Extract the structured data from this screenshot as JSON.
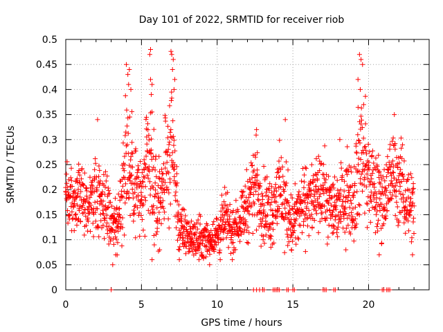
{
  "chart_data": {
    "type": "scatter",
    "title": "Day 101 of 2022, SRMTID for receiver riob",
    "xlabel": "GPS time / hours",
    "ylabel": "SRMTID / TECUs",
    "xlim": [
      0,
      24
    ],
    "ylim": [
      0,
      0.5
    ],
    "xticks": [
      0,
      5,
      10,
      15,
      20
    ],
    "xtick_labels": [
      "0",
      "5",
      "10",
      "15",
      "20"
    ],
    "yticks": [
      0,
      0.05,
      0.1,
      0.15,
      0.2,
      0.25,
      0.3,
      0.35,
      0.4,
      0.45,
      0.5
    ],
    "ytick_labels": [
      "0",
      "0.05",
      "0.1",
      "0.15",
      "0.2",
      "0.25",
      "0.3",
      "0.35",
      "0.4",
      "0.45",
      "0.5"
    ],
    "grid": true,
    "marker": "+",
    "marker_color": "#ff0000",
    "envelope": [
      [
        0.0,
        0.19,
        0.04
      ],
      [
        0.5,
        0.18,
        0.04
      ],
      [
        1.0,
        0.19,
        0.04
      ],
      [
        1.5,
        0.17,
        0.04
      ],
      [
        2.0,
        0.2,
        0.06
      ],
      [
        2.5,
        0.18,
        0.05
      ],
      [
        3.0,
        0.14,
        0.04
      ],
      [
        3.5,
        0.13,
        0.04
      ],
      [
        4.0,
        0.28,
        0.1
      ],
      [
        4.5,
        0.22,
        0.08
      ],
      [
        5.0,
        0.18,
        0.05
      ],
      [
        5.5,
        0.25,
        0.1
      ],
      [
        6.0,
        0.16,
        0.06
      ],
      [
        6.5,
        0.22,
        0.06
      ],
      [
        7.0,
        0.3,
        0.1
      ],
      [
        7.5,
        0.12,
        0.04
      ],
      [
        8.0,
        0.11,
        0.03
      ],
      [
        8.5,
        0.1,
        0.03
      ],
      [
        9.0,
        0.1,
        0.03
      ],
      [
        9.5,
        0.1,
        0.02
      ],
      [
        10.0,
        0.11,
        0.03
      ],
      [
        10.5,
        0.14,
        0.04
      ],
      [
        11.0,
        0.12,
        0.03
      ],
      [
        11.5,
        0.14,
        0.03
      ],
      [
        12.0,
        0.17,
        0.05
      ],
      [
        12.5,
        0.22,
        0.06
      ],
      [
        13.0,
        0.17,
        0.05
      ],
      [
        13.5,
        0.15,
        0.05
      ],
      [
        14.0,
        0.2,
        0.06
      ],
      [
        14.5,
        0.17,
        0.06
      ],
      [
        15.0,
        0.13,
        0.04
      ],
      [
        15.5,
        0.16,
        0.05
      ],
      [
        16.0,
        0.18,
        0.05
      ],
      [
        16.5,
        0.18,
        0.05
      ],
      [
        17.0,
        0.2,
        0.05
      ],
      [
        17.5,
        0.16,
        0.05
      ],
      [
        18.0,
        0.17,
        0.05
      ],
      [
        18.5,
        0.2,
        0.05
      ],
      [
        19.0,
        0.18,
        0.06
      ],
      [
        19.5,
        0.28,
        0.1
      ],
      [
        20.0,
        0.22,
        0.06
      ],
      [
        20.5,
        0.19,
        0.06
      ],
      [
        21.0,
        0.18,
        0.05
      ],
      [
        21.5,
        0.23,
        0.06
      ],
      [
        22.0,
        0.22,
        0.06
      ],
      [
        22.5,
        0.18,
        0.05
      ],
      [
        23.0,
        0.17,
        0.05
      ]
    ],
    "points": [
      [
        4.0,
        0.45
      ],
      [
        4.1,
        0.43
      ],
      [
        4.2,
        0.44
      ],
      [
        4.3,
        0.4
      ],
      [
        4.15,
        0.41
      ],
      [
        5.6,
        0.48
      ],
      [
        5.55,
        0.47
      ],
      [
        5.6,
        0.42
      ],
      [
        5.7,
        0.41
      ],
      [
        5.65,
        0.39
      ],
      [
        7.0,
        0.47
      ],
      [
        7.1,
        0.46
      ],
      [
        7.05,
        0.44
      ],
      [
        7.2,
        0.42
      ],
      [
        7.15,
        0.4
      ],
      [
        19.4,
        0.47
      ],
      [
        19.5,
        0.46
      ],
      [
        19.6,
        0.45
      ],
      [
        19.3,
        0.42
      ],
      [
        19.45,
        0.4
      ],
      [
        14.5,
        0.34
      ],
      [
        12.6,
        0.32
      ],
      [
        2.1,
        0.34
      ],
      [
        21.7,
        0.35
      ],
      [
        18.1,
        0.3
      ],
      [
        3.1,
        0.05
      ],
      [
        3.3,
        0.07
      ],
      [
        7.5,
        0.06
      ],
      [
        8.8,
        0.06
      ],
      [
        9.5,
        0.05
      ],
      [
        10.2,
        0.06
      ],
      [
        11.0,
        0.06
      ],
      [
        14.9,
        0.08
      ],
      [
        18.5,
        0.08
      ],
      [
        20.7,
        0.07
      ],
      [
        22.9,
        0.07
      ],
      [
        5.7,
        0.06
      ],
      [
        6.2,
        0.08
      ],
      [
        9.0,
        0.07
      ]
    ],
    "zero_points": [
      3.0,
      12.4,
      12.6,
      12.8,
      13.0,
      13.1,
      13.7,
      13.8,
      13.9,
      14.0,
      14.1,
      14.6,
      14.7,
      15.0,
      15.1,
      17.0,
      17.1,
      17.2,
      17.7,
      17.8,
      20.9,
      21.0,
      21.2,
      21.3,
      21.4
    ]
  }
}
